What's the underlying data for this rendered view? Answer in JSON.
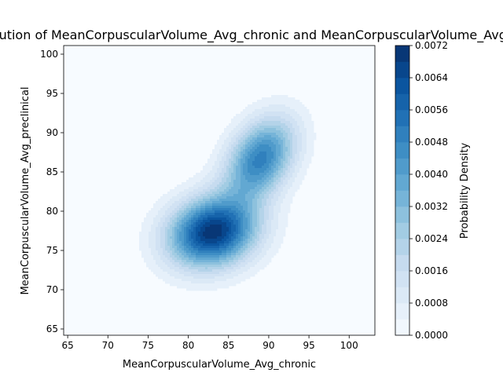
{
  "chart_data": {
    "type": "contour",
    "title": "Joint Distribution of MeanCorpuscularVolume_Avg_chronic and MeanCorpuscularVolume_Avg_preclinical",
    "xlabel": "MeanCorpuscularVolume_Avg_chronic",
    "ylabel": "MeanCorpuscularVolume_Avg_preclinical",
    "xlim": [
      64.5,
      103.2
    ],
    "ylim": [
      64.2,
      101.1
    ],
    "xticks": [
      "65",
      "70",
      "75",
      "80",
      "85",
      "90",
      "95",
      "100"
    ],
    "yticks": [
      "65",
      "70",
      "75",
      "80",
      "85",
      "90",
      "95",
      "100"
    ],
    "colormap": "Blues",
    "colorbar": {
      "label": "Probability Density",
      "min": 0.0,
      "max": 0.0072,
      "ticks": [
        "0.0000",
        "0.0008",
        "0.0016",
        "0.0024",
        "0.0032",
        "0.0040",
        "0.0048",
        "0.0056",
        "0.0064",
        "0.0072"
      ]
    },
    "density_components": [
      {
        "mean_x": 83.0,
        "mean_y": 77.3,
        "sd_x": 3.8,
        "sd_y": 3.1,
        "rho": 0.15,
        "weight": 0.62
      },
      {
        "mean_x": 89.0,
        "mean_y": 86.7,
        "sd_x": 3.0,
        "sd_y": 3.6,
        "rho": 0.35,
        "weight": 0.38
      }
    ]
  }
}
